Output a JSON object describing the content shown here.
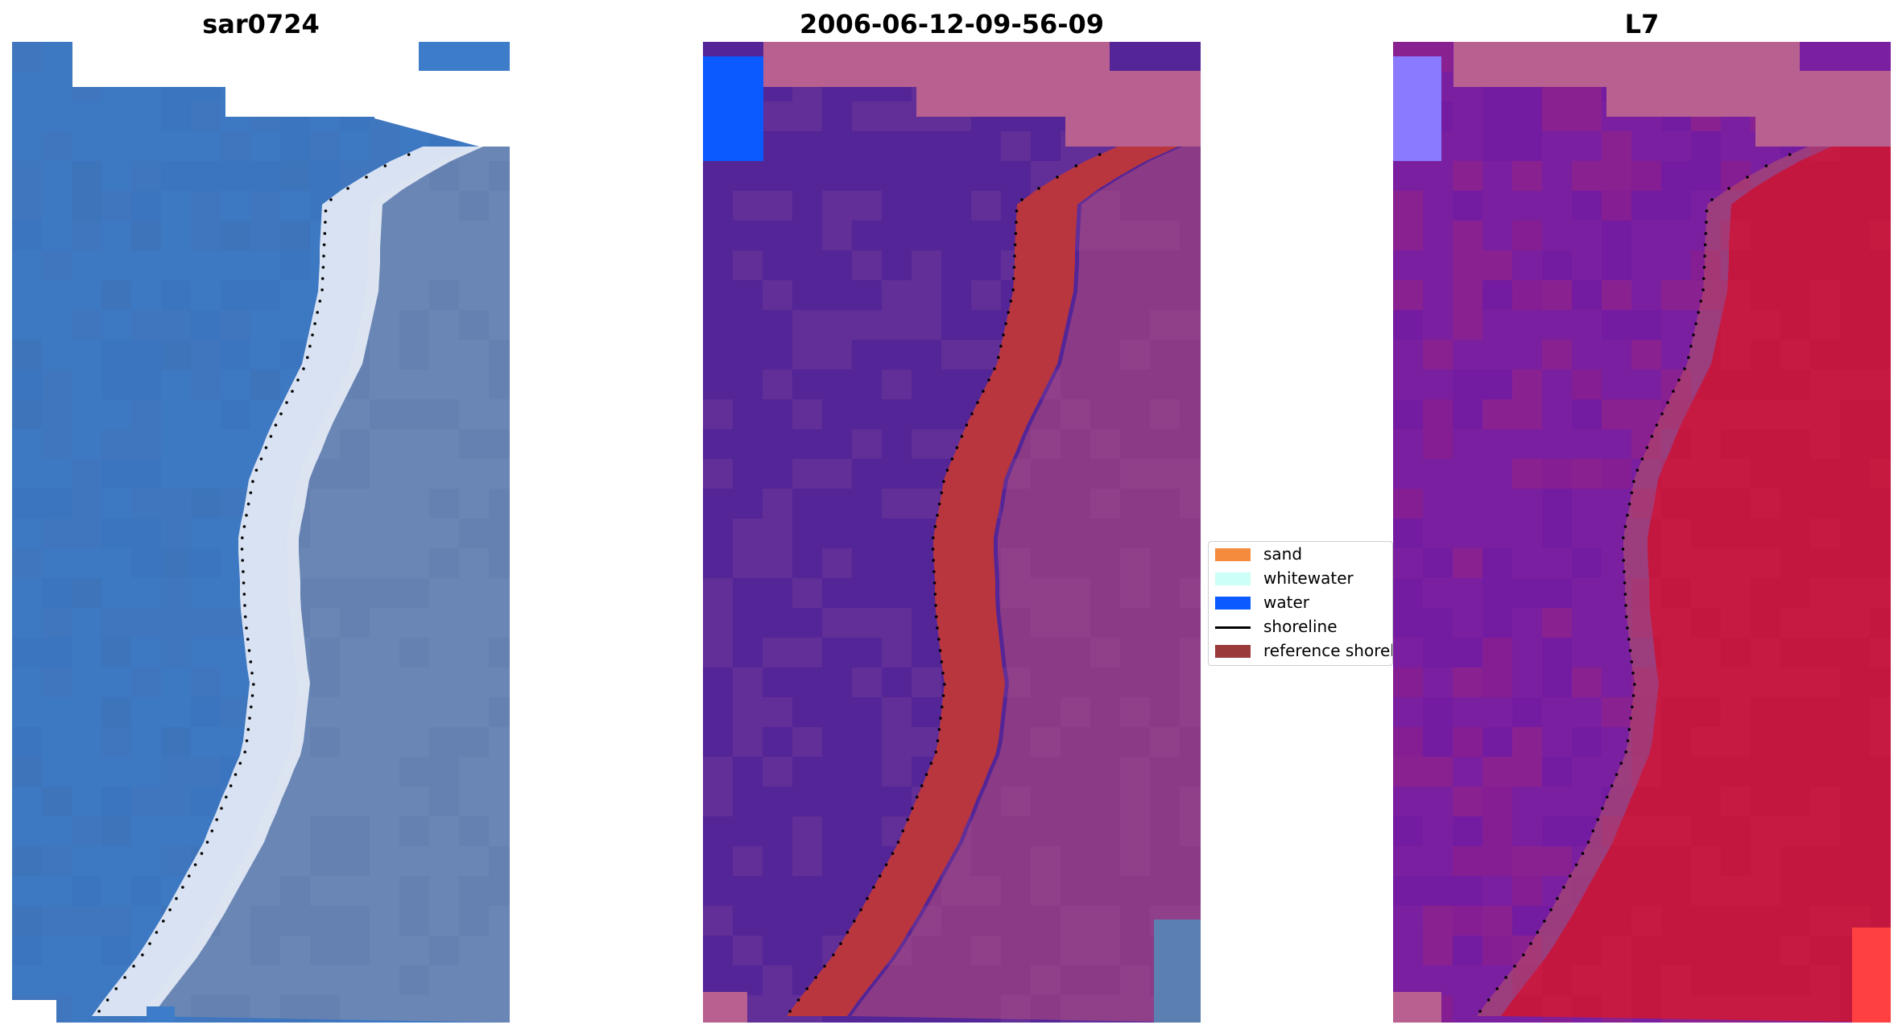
{
  "panels": [
    {
      "title": "sar0724",
      "kind": "rgb"
    },
    {
      "title": "2006-06-12-09-56-09",
      "kind": "classified"
    },
    {
      "title": "L7",
      "kind": "index"
    }
  ],
  "legend": {
    "placement": "center",
    "items": [
      {
        "label": "sand",
        "color": "#f58b3c",
        "type": "patch"
      },
      {
        "label": "whitewater",
        "color": "#ccfff5",
        "type": "patch"
      },
      {
        "label": "water",
        "color": "#0a5aff",
        "type": "patch"
      },
      {
        "label": "shoreline",
        "color": "#000000",
        "type": "line"
      },
      {
        "label": "reference shoreline buffer",
        "color": "#9a3a3a",
        "type": "patch"
      }
    ]
  },
  "colors": {
    "rgb_water": "#3d78c2",
    "rgb_water_dark": "#3569b5",
    "rgb_surf": "#e6ecf6",
    "rgb_land": "#6a86b5",
    "rgb_land_dark": "#4d70a8",
    "class_water": "#532597",
    "class_land": "#8b3a86",
    "class_land_top": "#b8608f",
    "class_buffer": "#b9363f",
    "class_blue": "#0a5aff",
    "class_grey": "#5a7fb0",
    "index_water": "#7a1fa0",
    "index_land": "#c4173f",
    "index_light": "#8a7aff",
    "index_top": "#b8608f",
    "index_red_bright": "#ff4040",
    "shoreline": "#000000"
  }
}
